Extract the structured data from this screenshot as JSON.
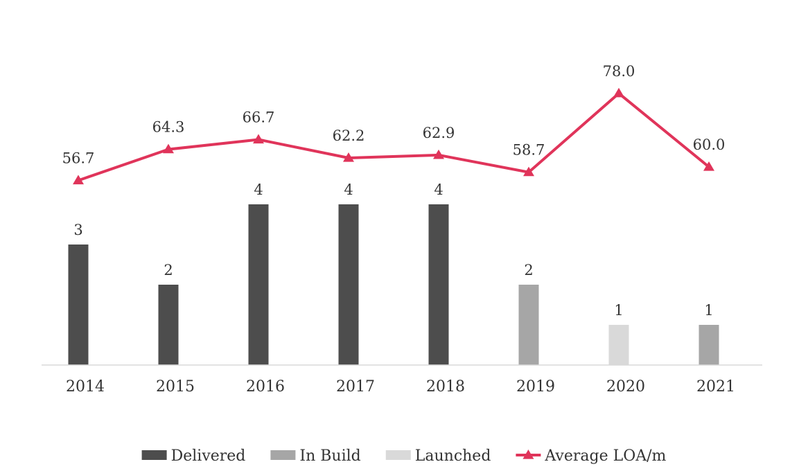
{
  "chart_data": {
    "type": "bar",
    "categories": [
      "2014",
      "2015",
      "2016",
      "2017",
      "2018",
      "2019",
      "2020",
      "2021"
    ],
    "series": [
      {
        "name": "Delivered",
        "kind": "bar",
        "color": "#4d4d4d",
        "values": [
          3,
          2,
          4,
          4,
          4,
          null,
          null,
          null
        ]
      },
      {
        "name": "In Build",
        "kind": "bar",
        "color": "#a6a6a6",
        "values": [
          null,
          null,
          null,
          null,
          null,
          2,
          null,
          1
        ]
      },
      {
        "name": "Launched",
        "kind": "bar",
        "color": "#d9d9d9",
        "values": [
          null,
          null,
          null,
          null,
          null,
          null,
          1,
          null
        ]
      },
      {
        "name": "Average LOA/m",
        "kind": "line",
        "marker": "triangle",
        "color": "#e0345a",
        "values": [
          56.7,
          64.3,
          66.7,
          62.2,
          62.9,
          58.7,
          78.0,
          60.0
        ],
        "labels": [
          "56.7",
          "64.3",
          "66.7",
          "62.2",
          "62.9",
          "58.7",
          "78.0",
          "60.0"
        ]
      }
    ],
    "ylim_bars": [
      0,
      4
    ],
    "ylim_line": [
      30,
      80
    ],
    "grid": false,
    "legend_position": "bottom",
    "title": "",
    "xlabel": "",
    "ylabel": ""
  }
}
